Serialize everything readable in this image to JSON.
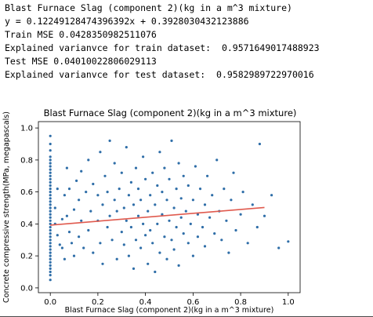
{
  "output": {
    "lines": [
      "Blast Furnace Slag (component 2)(kg in a m^3 mixture)",
      "y = 0.12249128474396392x + 0.3928030432123886",
      "Train MSE 0.0428350982511076",
      "Explained varianvce for train dataset:  0.9571649017488923",
      "Test MSE 0.04010022806029113",
      "Explained varianvce for test dataset:  0.9582989722970016"
    ]
  },
  "chart_data": {
    "type": "scatter",
    "title": "Blast Furnace Slag (component 2)(kg in a m^3 mixture)",
    "xlabel": "Blast Furnace Slag (component 2)(kg in a m^3 mixture)",
    "ylabel": "Concrete compressive strength(MPa, megapascals)",
    "xlim": [
      -0.05,
      1.05
    ],
    "ylim": [
      -0.03,
      1.04
    ],
    "xticks": [
      0.0,
      0.2,
      0.4,
      0.6,
      0.8,
      1.0
    ],
    "xtick_labels": [
      "0.0",
      "0.2",
      "0.4",
      "0.6",
      "0.8",
      "1.0"
    ],
    "yticks": [
      0.0,
      0.2,
      0.4,
      0.6,
      0.8,
      1.0
    ],
    "ytick_labels": [
      "0.0",
      "0.2",
      "0.4",
      "0.6",
      "0.8",
      "1.0"
    ],
    "grid": false,
    "scatter_color": "#2f6ea8",
    "line_color": "#e05a4e",
    "fit_line": {
      "slope": 0.12249128474396392,
      "intercept": 0.3928030432123886,
      "x_range": [
        0.0,
        0.9
      ]
    },
    "points": [
      [
        0.0,
        0.05
      ],
      [
        0.0,
        0.08
      ],
      [
        0.0,
        0.1
      ],
      [
        0.0,
        0.12
      ],
      [
        0.0,
        0.14
      ],
      [
        0.0,
        0.16
      ],
      [
        0.0,
        0.18
      ],
      [
        0.0,
        0.2
      ],
      [
        0.0,
        0.22
      ],
      [
        0.0,
        0.24
      ],
      [
        0.0,
        0.26
      ],
      [
        0.0,
        0.28
      ],
      [
        0.0,
        0.3
      ],
      [
        0.0,
        0.32
      ],
      [
        0.0,
        0.34
      ],
      [
        0.0,
        0.36
      ],
      [
        0.0,
        0.38
      ],
      [
        0.0,
        0.4
      ],
      [
        0.0,
        0.42
      ],
      [
        0.0,
        0.44
      ],
      [
        0.0,
        0.46
      ],
      [
        0.0,
        0.48
      ],
      [
        0.0,
        0.5
      ],
      [
        0.0,
        0.52
      ],
      [
        0.0,
        0.54
      ],
      [
        0.0,
        0.56
      ],
      [
        0.0,
        0.58
      ],
      [
        0.0,
        0.6
      ],
      [
        0.0,
        0.62
      ],
      [
        0.0,
        0.64
      ],
      [
        0.0,
        0.66
      ],
      [
        0.0,
        0.68
      ],
      [
        0.0,
        0.7
      ],
      [
        0.0,
        0.72
      ],
      [
        0.0,
        0.74
      ],
      [
        0.0,
        0.76
      ],
      [
        0.0,
        0.78
      ],
      [
        0.0,
        0.8
      ],
      [
        0.0,
        0.82
      ],
      [
        0.0,
        0.86
      ],
      [
        0.0,
        0.9
      ],
      [
        0.0,
        0.95
      ],
      [
        0.02,
        0.5
      ],
      [
        0.02,
        0.4
      ],
      [
        0.03,
        0.33
      ],
      [
        0.03,
        0.62
      ],
      [
        0.04,
        0.27
      ],
      [
        0.05,
        0.25
      ],
      [
        0.05,
        0.43
      ],
      [
        0.06,
        0.18
      ],
      [
        0.06,
        0.58
      ],
      [
        0.07,
        0.45
      ],
      [
        0.07,
        0.75
      ],
      [
        0.08,
        0.35
      ],
      [
        0.08,
        0.62
      ],
      [
        0.09,
        0.28
      ],
      [
        0.1,
        0.2
      ],
      [
        0.1,
        0.49
      ],
      [
        0.11,
        0.67
      ],
      [
        0.12,
        0.32
      ],
      [
        0.12,
        0.55
      ],
      [
        0.13,
        0.42
      ],
      [
        0.13,
        0.73
      ],
      [
        0.14,
        0.25
      ],
      [
        0.15,
        0.6
      ],
      [
        0.16,
        0.36
      ],
      [
        0.16,
        0.8
      ],
      [
        0.17,
        0.48
      ],
      [
        0.18,
        0.22
      ],
      [
        0.18,
        0.65
      ],
      [
        0.2,
        0.42
      ],
      [
        0.2,
        0.58
      ],
      [
        0.21,
        0.28
      ],
      [
        0.21,
        0.85
      ],
      [
        0.22,
        0.52
      ],
      [
        0.22,
        0.15
      ],
      [
        0.23,
        0.7
      ],
      [
        0.24,
        0.38
      ],
      [
        0.24,
        0.6
      ],
      [
        0.25,
        0.45
      ],
      [
        0.25,
        0.92
      ],
      [
        0.26,
        0.3
      ],
      [
        0.27,
        0.55
      ],
      [
        0.27,
        0.78
      ],
      [
        0.28,
        0.18
      ],
      [
        0.28,
        0.48
      ],
      [
        0.29,
        0.62
      ],
      [
        0.3,
        0.35
      ],
      [
        0.3,
        0.72
      ],
      [
        0.31,
        0.27
      ],
      [
        0.31,
        0.5
      ],
      [
        0.32,
        0.42
      ],
      [
        0.32,
        0.88
      ],
      [
        0.33,
        0.58
      ],
      [
        0.33,
        0.2
      ],
      [
        0.34,
        0.66
      ],
      [
        0.34,
        0.38
      ],
      [
        0.35,
        0.52
      ],
      [
        0.35,
        0.12
      ],
      [
        0.36,
        0.75
      ],
      [
        0.36,
        0.3
      ],
      [
        0.37,
        0.45
      ],
      [
        0.37,
        0.62
      ],
      [
        0.38,
        0.25
      ],
      [
        0.38,
        0.55
      ],
      [
        0.39,
        0.4
      ],
      [
        0.39,
        0.82
      ],
      [
        0.4,
        0.33
      ],
      [
        0.4,
        0.68
      ],
      [
        0.41,
        0.48
      ],
      [
        0.41,
        0.15
      ],
      [
        0.42,
        0.58
      ],
      [
        0.42,
        0.36
      ],
      [
        0.43,
        0.72
      ],
      [
        0.43,
        0.28
      ],
      [
        0.44,
        0.52
      ],
      [
        0.44,
        0.1
      ],
      [
        0.45,
        0.64
      ],
      [
        0.45,
        0.4
      ],
      [
        0.46,
        0.22
      ],
      [
        0.46,
        0.85
      ],
      [
        0.47,
        0.46
      ],
      [
        0.47,
        0.6
      ],
      [
        0.48,
        0.32
      ],
      [
        0.48,
        0.75
      ],
      [
        0.49,
        0.18
      ],
      [
        0.49,
        0.55
      ],
      [
        0.5,
        0.42
      ],
      [
        0.5,
        0.68
      ],
      [
        0.51,
        0.3
      ],
      [
        0.51,
        0.92
      ],
      [
        0.52,
        0.5
      ],
      [
        0.52,
        0.24
      ],
      [
        0.53,
        0.62
      ],
      [
        0.53,
        0.38
      ],
      [
        0.54,
        0.78
      ],
      [
        0.54,
        0.14
      ],
      [
        0.55,
        0.56
      ],
      [
        0.55,
        0.44
      ],
      [
        0.56,
        0.34
      ],
      [
        0.56,
        0.7
      ],
      [
        0.57,
        0.48
      ],
      [
        0.58,
        0.28
      ],
      [
        0.58,
        0.64
      ],
      [
        0.59,
        0.4
      ],
      [
        0.6,
        0.55
      ],
      [
        0.6,
        0.2
      ],
      [
        0.61,
        0.76
      ],
      [
        0.62,
        0.46
      ],
      [
        0.62,
        0.32
      ],
      [
        0.63,
        0.62
      ],
      [
        0.64,
        0.38
      ],
      [
        0.65,
        0.52
      ],
      [
        0.65,
        0.26
      ],
      [
        0.66,
        0.7
      ],
      [
        0.67,
        0.44
      ],
      [
        0.68,
        0.58
      ],
      [
        0.69,
        0.34
      ],
      [
        0.7,
        0.8
      ],
      [
        0.71,
        0.48
      ],
      [
        0.72,
        0.3
      ],
      [
        0.73,
        0.62
      ],
      [
        0.74,
        0.42
      ],
      [
        0.75,
        0.22
      ],
      [
        0.76,
        0.55
      ],
      [
        0.77,
        0.72
      ],
      [
        0.78,
        0.36
      ],
      [
        0.8,
        0.46
      ],
      [
        0.81,
        0.6
      ],
      [
        0.83,
        0.28
      ],
      [
        0.85,
        0.52
      ],
      [
        0.87,
        0.38
      ],
      [
        0.88,
        0.9
      ],
      [
        0.9,
        0.45
      ],
      [
        0.93,
        0.58
      ],
      [
        0.96,
        0.25
      ],
      [
        1.0,
        0.29
      ]
    ]
  }
}
